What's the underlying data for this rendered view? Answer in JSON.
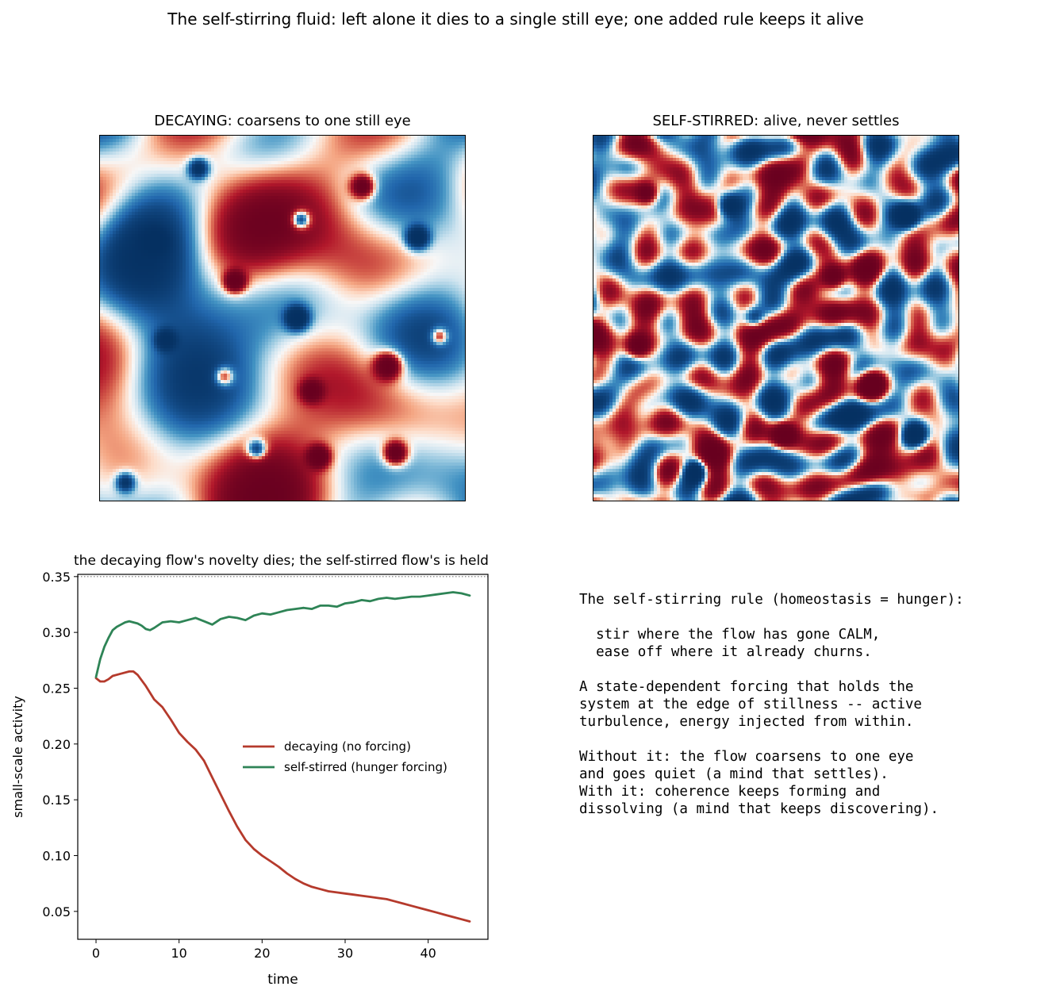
{
  "suptitle": "The self-stirring fluid: left alone it dies to a single still eye; one added rule keeps it alive",
  "panels": {
    "decaying": {
      "title": "DECAYING: coarsens to one still eye",
      "colormap": "RdBu_r"
    },
    "stirred": {
      "title": "SELF-STIRRED: alive, never settles",
      "colormap": "RdBu_r"
    }
  },
  "explanation": {
    "lines": [
      "The self-stirring rule (homeostasis = hunger):",
      "",
      "  stir where the flow has gone CALM,",
      "  ease off where it already churns.",
      "",
      "A state-dependent forcing that holds the",
      "system at the edge of stillness -- active",
      "turbulence, energy injected from within.",
      "",
      "Without it: the flow coarsens to one eye",
      "and goes quiet (a mind that settles).",
      "With it: coherence keeps forming and",
      "dissolving (a mind that keeps discovering)."
    ]
  },
  "colors": {
    "decaying": "#b53a2c",
    "stirred": "#2e8456",
    "ref_line": "#777777"
  },
  "chart_data": {
    "type": "line",
    "title": "the decaying flow's novelty dies; the self-stirred flow's is held",
    "xlabel": "time",
    "ylabel": "small-scale activity",
    "xlim": [
      -2.2,
      47.2
    ],
    "ylim": [
      0.025,
      0.352
    ],
    "xticks": [
      0,
      10,
      20,
      30,
      40
    ],
    "yticks": [
      0.05,
      0.1,
      0.15,
      0.2,
      0.25,
      0.3,
      0.35
    ],
    "reference_line": {
      "y": 0.35,
      "style": "dotted"
    },
    "legend": {
      "placement": "center-right"
    },
    "series": [
      {
        "name": "decaying (no forcing)",
        "x": [
          0,
          0.5,
          1,
          1.5,
          2,
          3,
          4,
          4.5,
          5,
          6,
          7,
          8,
          9,
          10,
          11,
          12,
          13,
          14,
          15,
          16,
          17,
          18,
          19,
          20,
          21,
          22,
          23,
          24,
          25,
          26,
          27,
          28,
          29,
          30,
          31,
          32,
          33,
          34,
          35,
          36,
          37,
          38,
          39,
          40,
          41,
          42,
          43,
          44,
          45
        ],
        "values": [
          0.259,
          0.256,
          0.256,
          0.258,
          0.261,
          0.263,
          0.265,
          0.265,
          0.262,
          0.252,
          0.24,
          0.233,
          0.222,
          0.21,
          0.202,
          0.195,
          0.185,
          0.17,
          0.155,
          0.14,
          0.126,
          0.114,
          0.106,
          0.1,
          0.095,
          0.09,
          0.084,
          0.079,
          0.075,
          0.072,
          0.07,
          0.068,
          0.067,
          0.066,
          0.065,
          0.064,
          0.063,
          0.062,
          0.061,
          0.059,
          0.057,
          0.055,
          0.053,
          0.051,
          0.049,
          0.047,
          0.045,
          0.043,
          0.041
        ]
      },
      {
        "name": "self-stirred (hunger forcing)",
        "x": [
          0,
          0.5,
          1,
          1.5,
          2,
          2.5,
          3,
          3.5,
          4,
          4.5,
          5,
          5.5,
          6,
          6.5,
          7,
          8,
          9,
          10,
          11,
          12,
          13,
          14,
          15,
          16,
          17,
          18,
          19,
          20,
          21,
          22,
          23,
          24,
          25,
          26,
          27,
          28,
          29,
          30,
          31,
          32,
          33,
          34,
          35,
          36,
          37,
          38,
          39,
          40,
          41,
          42,
          43,
          44,
          45
        ],
        "values": [
          0.26,
          0.276,
          0.287,
          0.295,
          0.302,
          0.305,
          0.307,
          0.309,
          0.31,
          0.309,
          0.308,
          0.306,
          0.303,
          0.302,
          0.304,
          0.309,
          0.31,
          0.309,
          0.311,
          0.313,
          0.31,
          0.307,
          0.312,
          0.314,
          0.313,
          0.311,
          0.315,
          0.317,
          0.316,
          0.318,
          0.32,
          0.321,
          0.322,
          0.321,
          0.324,
          0.324,
          0.323,
          0.326,
          0.327,
          0.329,
          0.328,
          0.33,
          0.331,
          0.33,
          0.331,
          0.332,
          0.332,
          0.333,
          0.334,
          0.335,
          0.336,
          0.335,
          0.333
        ]
      }
    ]
  }
}
